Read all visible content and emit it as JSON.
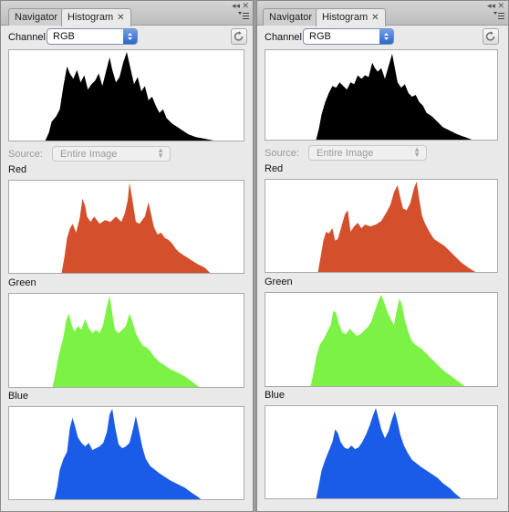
{
  "panels": [
    {
      "tabs": [
        {
          "label": "Navigator"
        },
        {
          "label": "Histogram"
        }
      ],
      "channel_label": "Channel:",
      "channel_value": "RGB",
      "source_label": "Source:",
      "source_value": "Entire Image",
      "sections": [
        "Red",
        "Green",
        "Blue"
      ]
    },
    {
      "tabs": [
        {
          "label": "Navigator"
        },
        {
          "label": "Histogram"
        }
      ],
      "channel_label": "Channel:",
      "channel_value": "RGB",
      "source_label": "Source:",
      "source_value": "Entire Image",
      "sections": [
        "Red",
        "Green",
        "Blue"
      ]
    }
  ],
  "colors": {
    "rgb": "#000000",
    "red": "#d4502c",
    "green": "#7df246",
    "blue": "#1a5ce8"
  },
  "icons": [
    "close-icon",
    "panel-menu-icon",
    "refresh-icon",
    "stepper-arrows-icon"
  ]
}
